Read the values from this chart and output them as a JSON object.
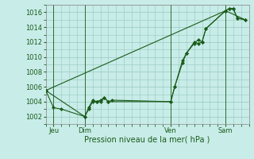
{
  "background_color": "#c8ece8",
  "grid_color": "#98c8c0",
  "line_color": "#1a5c1a",
  "marker_color": "#1a5c1a",
  "xlabel": "Pression niveau de la mer( hPa )",
  "ylim": [
    1001.0,
    1017.0
  ],
  "yticks": [
    1002,
    1004,
    1006,
    1008,
    1010,
    1012,
    1014,
    1016
  ],
  "xlim": [
    0,
    52
  ],
  "day_positions": [
    2,
    10,
    32,
    46
  ],
  "day_labels": [
    "Jeu",
    "Dim",
    "Ven",
    "Sam"
  ],
  "vline_positions": [
    2,
    10,
    32,
    46
  ],
  "series1_x": [
    0,
    2,
    4,
    10,
    11,
    12,
    13,
    14,
    15,
    16,
    32,
    33,
    35,
    36,
    38,
    39,
    40,
    41,
    46,
    47,
    48,
    49,
    51
  ],
  "series1_y": [
    1005.5,
    1003.2,
    1003.0,
    1002.0,
    1003.2,
    1004.2,
    1004.0,
    1004.0,
    1004.5,
    1004.0,
    1004.0,
    1006.0,
    1009.5,
    1010.5,
    1012.0,
    1011.8,
    1012.0,
    1013.8,
    1016.2,
    1016.5,
    1016.5,
    1015.2,
    1015.0
  ],
  "series2_x": [
    0,
    10,
    11,
    12,
    13,
    14,
    15,
    16,
    17,
    32,
    33,
    35,
    36,
    38,
    39,
    40,
    41,
    46,
    47,
    48,
    49,
    51
  ],
  "series2_y": [
    1005.5,
    1002.0,
    1003.0,
    1004.0,
    1004.0,
    1004.2,
    1004.5,
    1004.0,
    1004.2,
    1004.0,
    1006.0,
    1009.2,
    1010.5,
    1011.8,
    1012.3,
    1012.0,
    1013.8,
    1016.2,
    1016.5,
    1016.5,
    1015.2,
    1015.0
  ],
  "series3_x": [
    0,
    46,
    51
  ],
  "series3_y": [
    1005.5,
    1016.2,
    1015.0
  ]
}
